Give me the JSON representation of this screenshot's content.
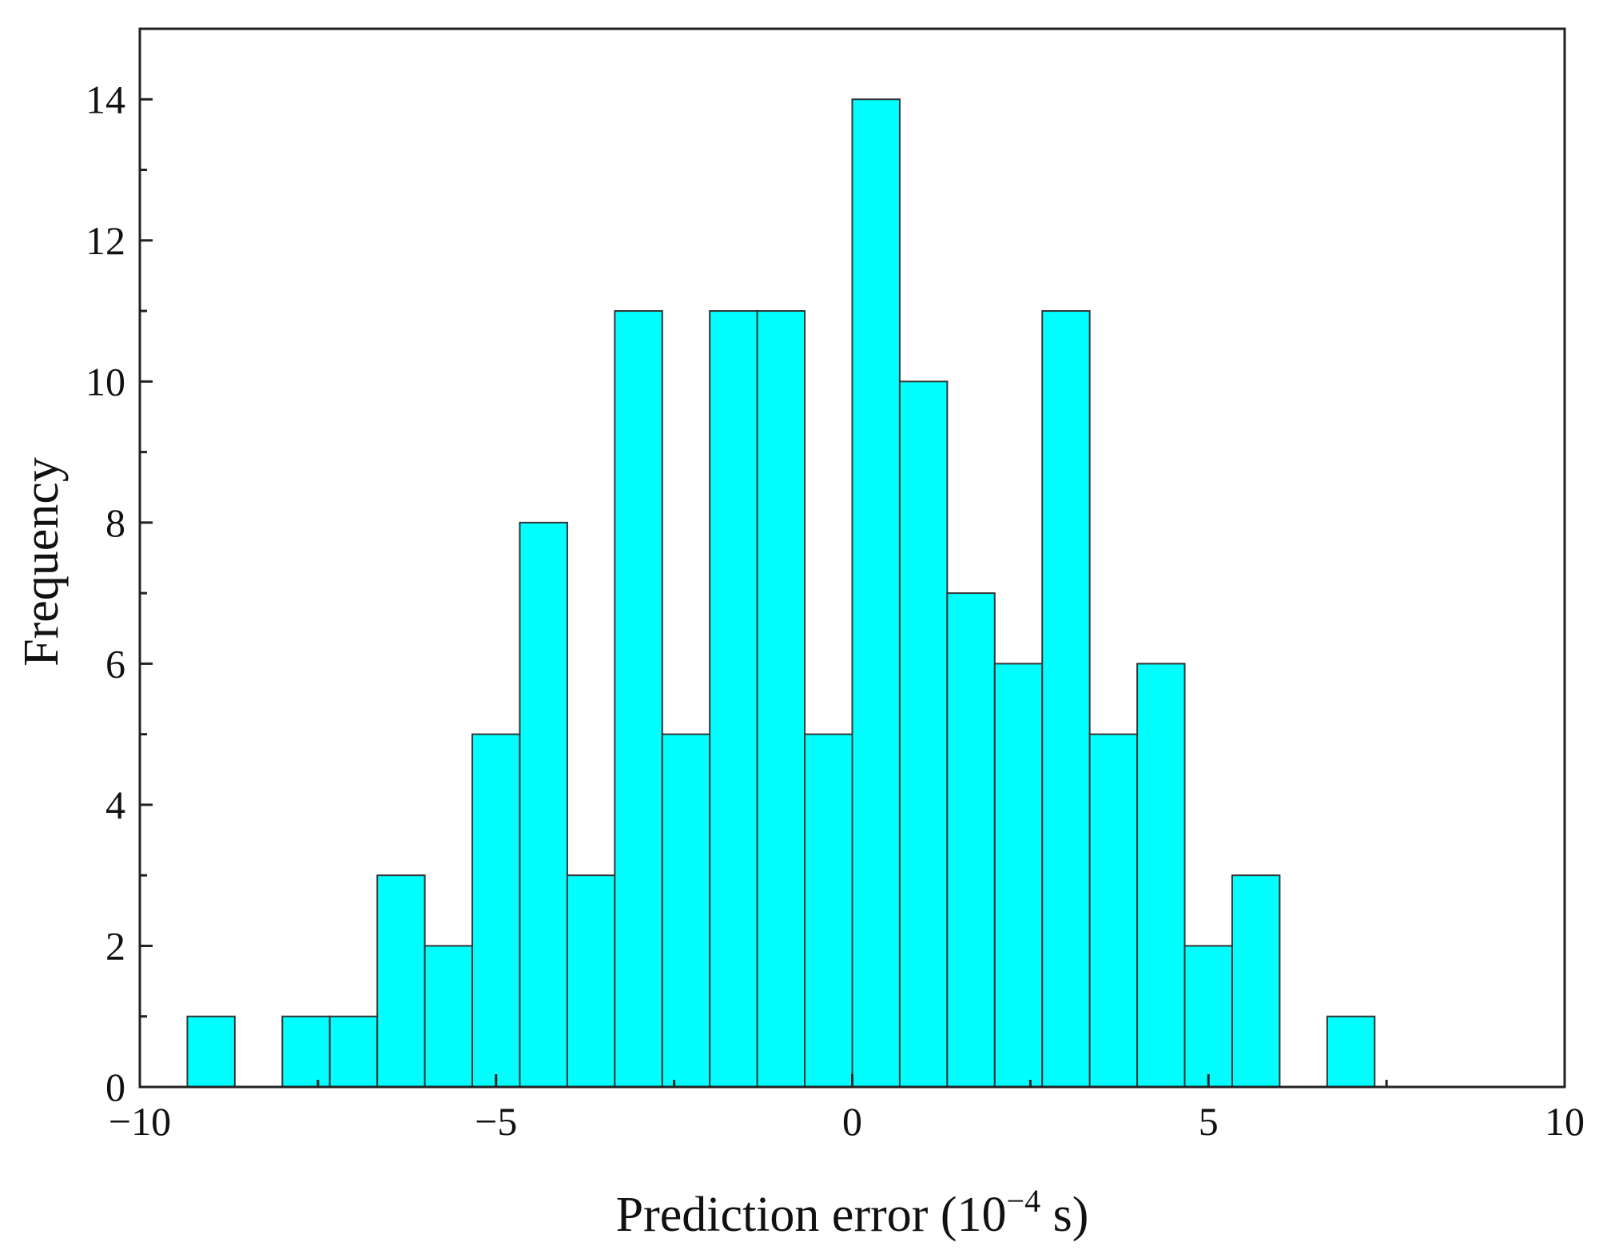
{
  "chart_data": {
    "type": "bar",
    "title": "",
    "xlabel": "Prediction error (10",
    "xlabel_exponent": "−4",
    "xlabel_unit": " s)",
    "ylabel": "Frequency",
    "xlim": [
      -10,
      10
    ],
    "ylim": [
      0,
      15
    ],
    "grid": false,
    "bin_width": 0.6667,
    "bin_start": -9.3333,
    "bar_color": "#00FFFF",
    "edge_color": "#333333",
    "x_ticks": [
      -10,
      -5,
      0,
      5,
      10
    ],
    "x_tick_labels": [
      "−10",
      "−5",
      "0",
      "5",
      "10"
    ],
    "y_ticks": [
      0,
      2,
      4,
      6,
      8,
      10,
      12,
      14
    ],
    "y_tick_labels": [
      "0",
      "2",
      "4",
      "6",
      "8",
      "10",
      "12",
      "14"
    ],
    "bins": [
      {
        "x_start": -9.3333,
        "x_end": -8.6667,
        "count": 1
      },
      {
        "x_start": -8.6667,
        "x_end": -8.0,
        "count": 0
      },
      {
        "x_start": -8.0,
        "x_end": -7.3333,
        "count": 1
      },
      {
        "x_start": -7.3333,
        "x_end": -6.6667,
        "count": 1
      },
      {
        "x_start": -6.6667,
        "x_end": -6.0,
        "count": 3
      },
      {
        "x_start": -6.0,
        "x_end": -5.3333,
        "count": 2
      },
      {
        "x_start": -5.3333,
        "x_end": -4.6667,
        "count": 5
      },
      {
        "x_start": -4.6667,
        "x_end": -4.0,
        "count": 8
      },
      {
        "x_start": -4.0,
        "x_end": -3.3333,
        "count": 3
      },
      {
        "x_start": -3.3333,
        "x_end": -2.6667,
        "count": 11
      },
      {
        "x_start": -2.6667,
        "x_end": -2.0,
        "count": 5
      },
      {
        "x_start": -2.0,
        "x_end": -1.3333,
        "count": 11
      },
      {
        "x_start": -1.3333,
        "x_end": -0.6667,
        "count": 11
      },
      {
        "x_start": -0.6667,
        "x_end": 0.0,
        "count": 5
      },
      {
        "x_start": 0.0,
        "x_end": 0.6667,
        "count": 14
      },
      {
        "x_start": 0.6667,
        "x_end": 1.3333,
        "count": 10
      },
      {
        "x_start": 1.3333,
        "x_end": 2.0,
        "count": 7
      },
      {
        "x_start": 2.0,
        "x_end": 2.6667,
        "count": 6
      },
      {
        "x_start": 2.6667,
        "x_end": 3.3333,
        "count": 11
      },
      {
        "x_start": 3.3333,
        "x_end": 4.0,
        "count": 5
      },
      {
        "x_start": 4.0,
        "x_end": 4.6667,
        "count": 6
      },
      {
        "x_start": 4.6667,
        "x_end": 5.3333,
        "count": 2
      },
      {
        "x_start": 5.3333,
        "x_end": 6.0,
        "count": 3
      },
      {
        "x_start": 6.0,
        "x_end": 6.6667,
        "count": 0
      },
      {
        "x_start": 6.6667,
        "x_end": 7.3333,
        "count": 1
      }
    ]
  }
}
